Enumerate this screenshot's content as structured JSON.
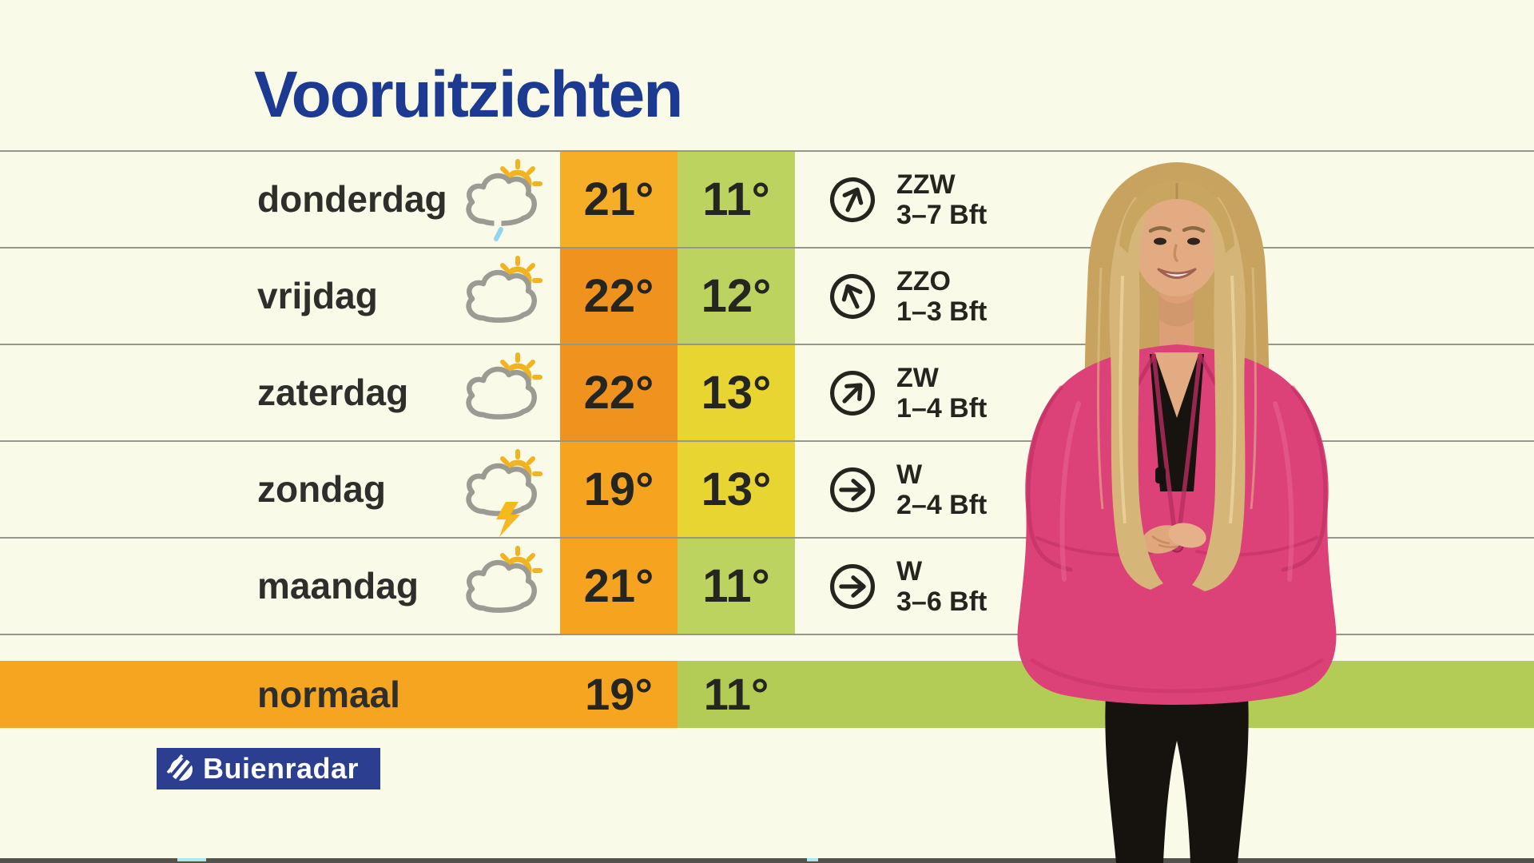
{
  "title": "Vooruitzichten",
  "colors": {
    "background": "#FAFAE9",
    "grid_line": "#96968B",
    "title": "#1C3A91",
    "text": "#2A2A26",
    "logo_bg": "#2B3E90",
    "ticker_strip": "#53524B"
  },
  "rows": [
    {
      "day": "donderdag",
      "icon": "sun-cloud-light-rain-icon",
      "high": "21°",
      "high_color": "#F6AE27",
      "low": "11°",
      "low_color": "#BCD45F",
      "wind_dir": "ZZW",
      "wind_bft": "3–7 Bft",
      "wind_deg": 25
    },
    {
      "day": "vrijdag",
      "icon": "sun-cloud-icon",
      "high": "22°",
      "high_color": "#F0921E",
      "low": "12°",
      "low_color": "#BCD45F",
      "wind_dir": "ZZO",
      "wind_bft": "1–3 Bft",
      "wind_deg": -25
    },
    {
      "day": "zaterdag",
      "icon": "sun-cloud-icon",
      "high": "22°",
      "high_color": "#F0921E",
      "low": "13°",
      "low_color": "#E8D532",
      "wind_dir": "ZW",
      "wind_bft": "1–4 Bft",
      "wind_deg": 45
    },
    {
      "day": "zondag",
      "icon": "sun-cloud-thunder-icon",
      "high": "19°",
      "high_color": "#F6A420",
      "low": "13°",
      "low_color": "#E8D532",
      "wind_dir": "W",
      "wind_bft": "2–4 Bft",
      "wind_deg": 90
    },
    {
      "day": "maandag",
      "icon": "sun-cloud-icon",
      "high": "21°",
      "high_color": "#F6A420",
      "low": "11°",
      "low_color": "#BCD45F",
      "wind_dir": "W",
      "wind_bft": "3–6 Bft",
      "wind_deg": 90
    }
  ],
  "normal_row": {
    "label": "normaal",
    "high": "19°",
    "high_color": "#F5A51F",
    "low": "11°",
    "low_color": "#B2CC55"
  },
  "logo": {
    "text": "Buienradar",
    "bg": "#2B3E90"
  }
}
